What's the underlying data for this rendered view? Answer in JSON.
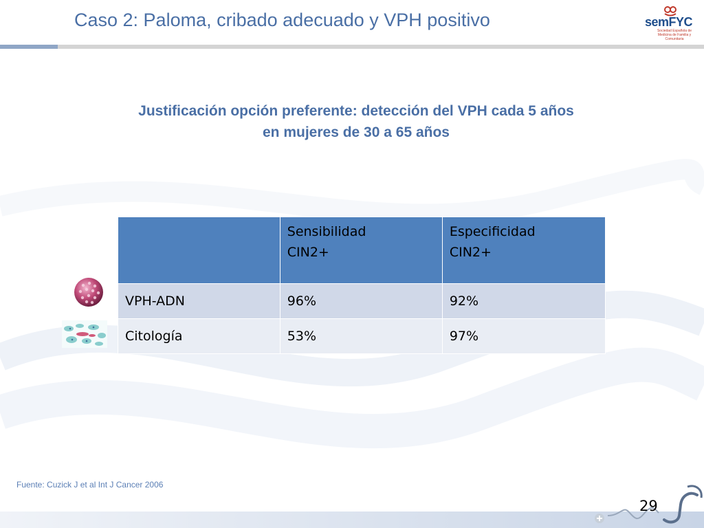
{
  "slide": {
    "title": "Caso 2: Paloma, cribado adecuado y VPH positivo",
    "subtitle_line1": "Justificación opción preferente: detección del VPH cada 5 años",
    "subtitle_line2": "en mujeres de 30 a 65 años",
    "source": "Fuente: Cuzick J et al  Int J Cancer 2006",
    "page_number": "29"
  },
  "logo": {
    "brand_prefix": "sem",
    "brand_suffix": "FYC",
    "tagline": "Sociedad Española de Medicina de Familia y Comunitaria",
    "icon": "semfyc-logo"
  },
  "table": {
    "headers": [
      {
        "line1": "",
        "line2": ""
      },
      {
        "line1": "Sensibilidad",
        "line2": "CIN2+"
      },
      {
        "line1": "Especificidad",
        "line2": "CIN2+"
      }
    ],
    "rows": [
      {
        "label": "VPH-ADN",
        "sensitivity": "96%",
        "specificity": "92%",
        "icon": "virus-icon"
      },
      {
        "label": "Citología",
        "sensitivity": "53%",
        "specificity": "97%",
        "icon": "cytology-cells-icon"
      }
    ]
  },
  "colors": {
    "title": "#4a6fa5",
    "header_fill": "#4f81bd",
    "row_dark": "#d0d8e8",
    "row_light": "#e9edf4",
    "virus": "#c04a78"
  }
}
